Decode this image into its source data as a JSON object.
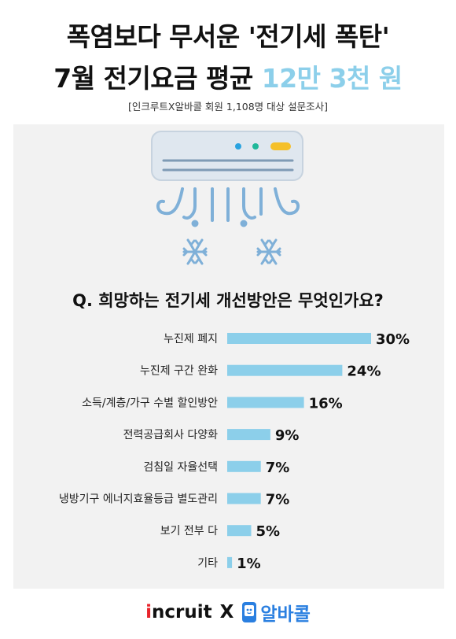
{
  "title_line1": "폭염보다 무서운 '전기세 폭탄'",
  "title_line2_prefix": "7월 전기요금 평균",
  "title_line2_highlight": "12만 3천 원",
  "source_note": "[인크루트X알바콜 회원 1,108명 대상 설문조사]",
  "question": "Q. 희망하는 전기세 개선방안은 무엇인가요?",
  "colors": {
    "bar": "#8ccfea",
    "highlight": "#8ccfea",
    "panel": "#f2f2f2",
    "ac_body": "#dfe7ef",
    "ac_line": "#7fb0d8",
    "dot_blue": "#2aa3e0",
    "dot_green": "#1fb89a",
    "dot_yellow": "#f5c02a"
  },
  "chart_data": {
    "type": "bar",
    "orientation": "horizontal",
    "categories": [
      "누진제 폐지",
      "누진제 구간 완화",
      "소득/계층/가구 수별 할인방안",
      "전력공급회사 다양화",
      "검침일 자율선택",
      "냉방기구 에너지효율등급 별도관리",
      "보기 전부 다",
      "기타"
    ],
    "values": [
      30,
      24,
      16,
      9,
      7,
      7,
      5,
      1
    ],
    "value_labels": [
      "30%",
      "24%",
      "16%",
      "9%",
      "7%",
      "7%",
      "5%",
      "1%"
    ],
    "title": "",
    "xlabel": "",
    "ylabel": "",
    "xlim": [
      0,
      30
    ],
    "grid": false,
    "legend": "none"
  },
  "footer": {
    "brand1_dot": "i",
    "brand1_rest": "ncruit",
    "separator": "X",
    "brand2": "알바콜"
  },
  "icons": [
    "air-conditioner-icon",
    "snowflake-icon",
    "phone-icon"
  ]
}
